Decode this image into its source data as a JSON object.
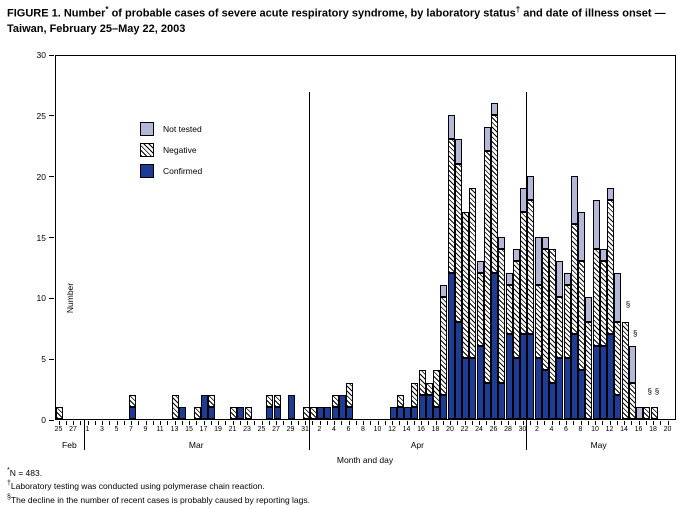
{
  "title_parts": [
    {
      "t": "FIGURE 1. Number"
    },
    {
      "sup": "*"
    },
    {
      "t": " of probable cases of severe acute respiratory syndrome, by laboratory status"
    },
    {
      "sup": "†"
    },
    {
      "t": " and date of illness onset — Taiwan, February 25–May 22, 2003"
    }
  ],
  "legend": [
    {
      "key": "not_tested",
      "label": "Not tested"
    },
    {
      "key": "negative",
      "label": "Negative"
    },
    {
      "key": "confirmed",
      "label": "Confirmed"
    }
  ],
  "colors": {
    "confirmed": "#1c3c96",
    "not_tested": "#b3b7d8",
    "negative": "hatched-black-on-white"
  },
  "axes": {
    "ylabel": "Number",
    "xlabel": "Month and day",
    "ylim": [
      0,
      30
    ],
    "yticks": [
      0,
      5,
      10,
      15,
      20,
      25,
      30
    ],
    "months": [
      {
        "name": "Feb",
        "first_day": 25,
        "last_day": 28,
        "labeled_days": [
          25,
          27
        ]
      },
      {
        "name": "Mar",
        "first_day": 1,
        "last_day": 31,
        "labeled_days": [
          1,
          3,
          5,
          7,
          9,
          11,
          13,
          15,
          17,
          19,
          21,
          23,
          25,
          27,
          29,
          31
        ]
      },
      {
        "name": "Apr",
        "first_day": 1,
        "last_day": 30,
        "labeled_days": [
          2,
          4,
          6,
          8,
          10,
          12,
          14,
          16,
          18,
          20,
          22,
          24,
          26,
          28,
          30
        ]
      },
      {
        "name": "May",
        "first_day": 1,
        "last_day": 20,
        "labeled_days": [
          2,
          4,
          6,
          8,
          10,
          12,
          14,
          16,
          18,
          20
        ]
      }
    ]
  },
  "chart_data": {
    "type": "bar",
    "stacked": true,
    "series_order_bottom_to_top": [
      "confirmed",
      "negative",
      "not_tested"
    ],
    "total_n": 483,
    "bars": [
      {
        "month": "Feb",
        "day": 25,
        "confirmed": 0,
        "negative": 1,
        "not_tested": 0
      },
      {
        "month": "Mar",
        "day": 7,
        "confirmed": 1,
        "negative": 1,
        "not_tested": 0
      },
      {
        "month": "Mar",
        "day": 13,
        "confirmed": 0,
        "negative": 2,
        "not_tested": 0
      },
      {
        "month": "Mar",
        "day": 14,
        "confirmed": 1,
        "negative": 0,
        "not_tested": 0
      },
      {
        "month": "Mar",
        "day": 16,
        "confirmed": 0,
        "negative": 1,
        "not_tested": 0
      },
      {
        "month": "Mar",
        "day": 17,
        "confirmed": 2,
        "negative": 0,
        "not_tested": 0
      },
      {
        "month": "Mar",
        "day": 18,
        "confirmed": 1,
        "negative": 1,
        "not_tested": 0
      },
      {
        "month": "Mar",
        "day": 21,
        "confirmed": 0,
        "negative": 1,
        "not_tested": 0
      },
      {
        "month": "Mar",
        "day": 22,
        "confirmed": 1,
        "negative": 0,
        "not_tested": 0
      },
      {
        "month": "Mar",
        "day": 23,
        "confirmed": 0,
        "negative": 1,
        "not_tested": 0
      },
      {
        "month": "Mar",
        "day": 26,
        "confirmed": 1,
        "negative": 1,
        "not_tested": 0
      },
      {
        "month": "Mar",
        "day": 27,
        "confirmed": 1,
        "negative": 1,
        "not_tested": 0
      },
      {
        "month": "Mar",
        "day": 29,
        "confirmed": 2,
        "negative": 0,
        "not_tested": 0
      },
      {
        "month": "Mar",
        "day": 31,
        "confirmed": 0,
        "negative": 1,
        "not_tested": 0
      },
      {
        "month": "Apr",
        "day": 1,
        "confirmed": 0,
        "negative": 1,
        "not_tested": 0
      },
      {
        "month": "Apr",
        "day": 2,
        "confirmed": 1,
        "negative": 0,
        "not_tested": 0
      },
      {
        "month": "Apr",
        "day": 3,
        "confirmed": 1,
        "negative": 0,
        "not_tested": 0
      },
      {
        "month": "Apr",
        "day": 4,
        "confirmed": 1,
        "negative": 1,
        "not_tested": 0
      },
      {
        "month": "Apr",
        "day": 5,
        "confirmed": 2,
        "negative": 0,
        "not_tested": 0
      },
      {
        "month": "Apr",
        "day": 6,
        "confirmed": 1,
        "negative": 2,
        "not_tested": 0
      },
      {
        "month": "Apr",
        "day": 12,
        "confirmed": 1,
        "negative": 0,
        "not_tested": 0
      },
      {
        "month": "Apr",
        "day": 13,
        "confirmed": 1,
        "negative": 1,
        "not_tested": 0
      },
      {
        "month": "Apr",
        "day": 14,
        "confirmed": 1,
        "negative": 0,
        "not_tested": 0
      },
      {
        "month": "Apr",
        "day": 15,
        "confirmed": 1,
        "negative": 2,
        "not_tested": 0
      },
      {
        "month": "Apr",
        "day": 16,
        "confirmed": 2,
        "negative": 2,
        "not_tested": 0
      },
      {
        "month": "Apr",
        "day": 17,
        "confirmed": 2,
        "negative": 1,
        "not_tested": 0
      },
      {
        "month": "Apr",
        "day": 18,
        "confirmed": 1,
        "negative": 3,
        "not_tested": 0
      },
      {
        "month": "Apr",
        "day": 19,
        "confirmed": 2,
        "negative": 8,
        "not_tested": 1
      },
      {
        "month": "Apr",
        "day": 20,
        "confirmed": 12,
        "negative": 11,
        "not_tested": 2
      },
      {
        "month": "Apr",
        "day": 21,
        "confirmed": 8,
        "negative": 13,
        "not_tested": 2
      },
      {
        "month": "Apr",
        "day": 22,
        "confirmed": 5,
        "negative": 12,
        "not_tested": 0
      },
      {
        "month": "Apr",
        "day": 23,
        "confirmed": 5,
        "negative": 14,
        "not_tested": 0
      },
      {
        "month": "Apr",
        "day": 24,
        "confirmed": 6,
        "negative": 6,
        "not_tested": 1
      },
      {
        "month": "Apr",
        "day": 25,
        "confirmed": 3,
        "negative": 19,
        "not_tested": 2
      },
      {
        "month": "Apr",
        "day": 26,
        "confirmed": 12,
        "negative": 13,
        "not_tested": 1
      },
      {
        "month": "Apr",
        "day": 27,
        "confirmed": 3,
        "negative": 11,
        "not_tested": 1
      },
      {
        "month": "Apr",
        "day": 28,
        "confirmed": 7,
        "negative": 4,
        "not_tested": 1
      },
      {
        "month": "Apr",
        "day": 29,
        "confirmed": 5,
        "negative": 8,
        "not_tested": 1
      },
      {
        "month": "Apr",
        "day": 30,
        "confirmed": 7,
        "negative": 10,
        "not_tested": 2
      },
      {
        "month": "May",
        "day": 1,
        "confirmed": 7,
        "negative": 11,
        "not_tested": 2
      },
      {
        "month": "May",
        "day": 2,
        "confirmed": 5,
        "negative": 6,
        "not_tested": 4
      },
      {
        "month": "May",
        "day": 3,
        "confirmed": 4,
        "negative": 10,
        "not_tested": 1
      },
      {
        "month": "May",
        "day": 4,
        "confirmed": 3,
        "negative": 11,
        "not_tested": 0
      },
      {
        "month": "May",
        "day": 5,
        "confirmed": 5,
        "negative": 5,
        "not_tested": 3
      },
      {
        "month": "May",
        "day": 6,
        "confirmed": 5,
        "negative": 6,
        "not_tested": 1
      },
      {
        "month": "May",
        "day": 7,
        "confirmed": 7,
        "negative": 9,
        "not_tested": 4
      },
      {
        "month": "May",
        "day": 8,
        "confirmed": 4,
        "negative": 9,
        "not_tested": 4
      },
      {
        "month": "May",
        "day": 9,
        "confirmed": 0,
        "negative": 8,
        "not_tested": 2
      },
      {
        "month": "May",
        "day": 10,
        "confirmed": 6,
        "negative": 8,
        "not_tested": 4
      },
      {
        "month": "May",
        "day": 11,
        "confirmed": 6,
        "negative": 7,
        "not_tested": 1
      },
      {
        "month": "May",
        "day": 12,
        "confirmed": 7,
        "negative": 11,
        "not_tested": 1
      },
      {
        "month": "May",
        "day": 13,
        "confirmed": 2,
        "negative": 6,
        "not_tested": 4
      },
      {
        "month": "May",
        "day": 14,
        "confirmed": 0,
        "negative": 8,
        "not_tested": 0
      },
      {
        "month": "May",
        "day": 15,
        "confirmed": 0,
        "negative": 3,
        "not_tested": 3
      },
      {
        "month": "May",
        "day": 16,
        "confirmed": 0,
        "negative": 0,
        "not_tested": 1
      },
      {
        "month": "May",
        "day": 17,
        "confirmed": 0,
        "negative": 1,
        "not_tested": 0
      },
      {
        "month": "May",
        "day": 18,
        "confirmed": 0,
        "negative": 1,
        "not_tested": 0
      }
    ],
    "annotations": [
      {
        "month": "May",
        "day": 14,
        "value": 9,
        "text": "§"
      },
      {
        "month": "May",
        "day": 15,
        "value": 6.6,
        "text": "§"
      },
      {
        "month": "May",
        "day": 17,
        "value": 1.8,
        "text": "§"
      },
      {
        "month": "May",
        "day": 18,
        "value": 1.8,
        "text": "§"
      }
    ]
  },
  "footnotes": [
    {
      "marker": "*",
      "text": "N = 483."
    },
    {
      "marker": "†",
      "text": "Laboratory testing was conducted using polymerase chain reaction."
    },
    {
      "marker": "§",
      "text": "The decline in the number of recent cases is probably caused by reporting lags."
    }
  ]
}
